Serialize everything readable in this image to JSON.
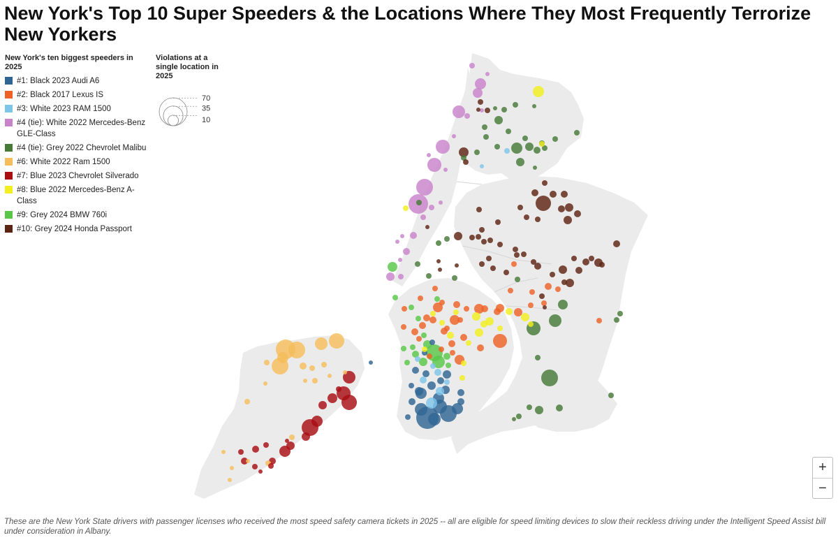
{
  "title": "New York's Top 10 Super Speeders & the Locations Where They Most Frequently Terrorize New Yorkers",
  "legend": {
    "title": "New York's ten biggest speeders in 2025",
    "items": [
      {
        "label": "#1: Black 2023 Audi A6",
        "color": "#2f6594"
      },
      {
        "label": "#2: Black 2017 Lexus IS",
        "color": "#ee6226"
      },
      {
        "label": "#3: White 2023 RAM 1500",
        "color": "#7ec5ea"
      },
      {
        "label": "#4 (tie): White 2022 Mercedes-Benz GLE-Class",
        "color": "#c983cb"
      },
      {
        "label": "#4 (tie): Grey 2022 Chevrolet Malibu",
        "color": "#467a37"
      },
      {
        "label": "#6: White 2022 Ram 1500",
        "color": "#f5bd5c"
      },
      {
        "label": "#7: Blue 2023 Chevrolet Silverado",
        "color": "#a80e12"
      },
      {
        "label": "#8: Blue 2022 Mercedes-Benz A-Class",
        "color": "#f2ee1f"
      },
      {
        "label": "#9: Grey 2024 BMW 760i",
        "color": "#58c748"
      },
      {
        "label": "#10: Grey 2024 Honda Passport",
        "color": "#5e2412"
      }
    ]
  },
  "size_legend": {
    "title": "Violations at a single location in 2025",
    "values": [
      70,
      35,
      10
    ]
  },
  "zoom": {
    "in": "+",
    "out": "−"
  },
  "note": "These are the New York State drivers with passenger licenses who received the most speed safety camera tickets in 2025 -- all are eligible for speed limiting devices to slow their reckless driving under the Intelligent Speed Assist bill under consideration in Albany.",
  "chart_data": {
    "type": "proportional-symbol-map",
    "size_unit": "violations at a single location",
    "size_scale": [
      10,
      70
    ],
    "color_by": "legend.items"
  }
}
